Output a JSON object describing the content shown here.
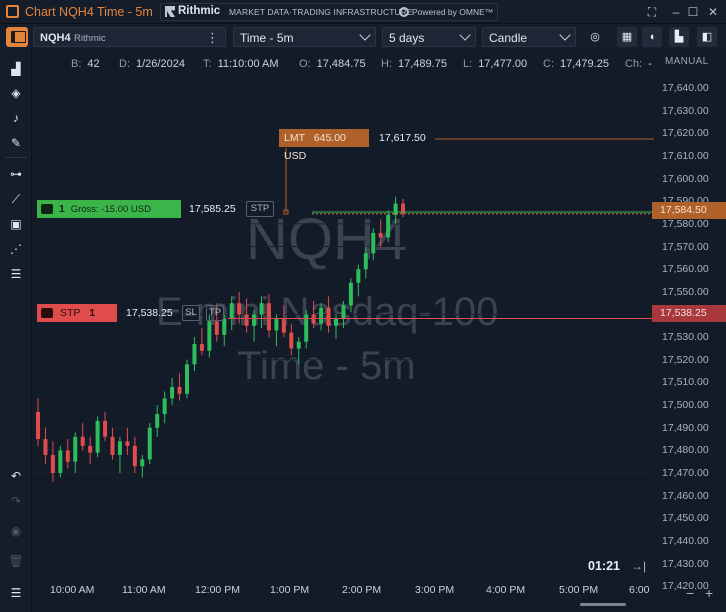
{
  "window": {
    "title": "Chart NQH4 Time - 5m"
  },
  "branding": {
    "rithmic": "Rithmic",
    "infra": "MARKET DATA·TRADING INFRASTRUCTURE",
    "omne": "Powered by OMNE™"
  },
  "toolbar": {
    "symbol": "NQH4",
    "symbol_sub": "Rithmic",
    "timeframe": "Time - 5m",
    "range": "5 days",
    "style": "Candle"
  },
  "bar_info": [
    {
      "k": "B:",
      "v": "42"
    },
    {
      "k": "D:",
      "v": "1/26/2024"
    },
    {
      "k": "T:",
      "v": "11:10:00 AM"
    },
    {
      "k": "O:",
      "v": "17,484.75"
    },
    {
      "k": "H:",
      "v": "17,489.75"
    },
    {
      "k": "L:",
      "v": "17,477.00"
    },
    {
      "k": "C:",
      "v": "17,479.25"
    },
    {
      "k": "Ch:",
      "v": "-"
    }
  ],
  "scale_mode": "MANUAL",
  "watermark": {
    "symbol": "NQH4",
    "name": "E-mini Nasdaq-100",
    "interval": "Time - 5m"
  },
  "orders": {
    "position": {
      "qty": "1",
      "gross": "Gross: -15.00 USD",
      "price": "17,585.25",
      "tag": "STP"
    },
    "limit": {
      "label": "LMT",
      "amount": "645.00 USD",
      "price": "17,617.50"
    },
    "stop": {
      "label": "STP",
      "qty": "1",
      "price": "17,538.25",
      "sl": "SL",
      "tp": "TP"
    }
  },
  "price_flags": {
    "last": "17,584.50",
    "stop": "17,538.25"
  },
  "price_axis": [
    "17,640.00",
    "17,630.00",
    "17,620.00",
    "17,610.00",
    "17,600.00",
    "17,590.00",
    "17,580.00",
    "17,570.00",
    "17,560.00",
    "17,550.00",
    "17,540.00",
    "17,530.00",
    "17,520.00",
    "17,510.00",
    "17,500.00",
    "17,490.00",
    "17,480.00",
    "17,470.00",
    "17,460.00",
    "17,450.00",
    "17,440.00",
    "17,430.00",
    "17,420.00"
  ],
  "time_axis": [
    "10:00 AM",
    "11:00 AM",
    "12:00 PM",
    "1:00 PM",
    "2:00 PM",
    "3:00 PM",
    "4:00 PM",
    "5:00 PM",
    "6:00"
  ],
  "timer": "01:21",
  "colors": {
    "up": "#2ebd5c",
    "down": "#e04c4c",
    "accent": "#e2843c",
    "position": "#3bb54a",
    "stop": "#e04c4c"
  },
  "candles": [
    [
      17497,
      17503,
      17482,
      17485
    ],
    [
      17485,
      17490,
      17474,
      17478
    ],
    [
      17478,
      17484,
      17466,
      17470
    ],
    [
      17470,
      17482,
      17468,
      17480
    ],
    [
      17480,
      17485,
      17472,
      17475
    ],
    [
      17475,
      17488,
      17470,
      17486
    ],
    [
      17486,
      17492,
      17480,
      17482
    ],
    [
      17482,
      17486,
      17474,
      17479
    ],
    [
      17479,
      17495,
      17477,
      17493
    ],
    [
      17493,
      17497,
      17484,
      17486
    ],
    [
      17486,
      17490,
      17476,
      17478
    ],
    [
      17478,
      17486,
      17470,
      17484
    ],
    [
      17484,
      17490,
      17478,
      17482
    ],
    [
      17482,
      17486,
      17470,
      17473
    ],
    [
      17473,
      17478,
      17468,
      17476
    ],
    [
      17476,
      17492,
      17474,
      17490
    ],
    [
      17490,
      17500,
      17486,
      17496
    ],
    [
      17496,
      17506,
      17492,
      17503
    ],
    [
      17503,
      17512,
      17500,
      17508
    ],
    [
      17508,
      17514,
      17502,
      17505
    ],
    [
      17505,
      17520,
      17503,
      17518
    ],
    [
      17518,
      17530,
      17515,
      17527
    ],
    [
      17527,
      17534,
      17522,
      17524
    ],
    [
      17524,
      17540,
      17521,
      17537
    ],
    [
      17537,
      17545,
      17528,
      17531
    ],
    [
      17531,
      17540,
      17526,
      17538
    ],
    [
      17538,
      17548,
      17533,
      17545
    ],
    [
      17545,
      17550,
      17536,
      17540
    ],
    [
      17540,
      17547,
      17532,
      17535
    ],
    [
      17535,
      17542,
      17528,
      17540
    ],
    [
      17540,
      17548,
      17534,
      17545
    ],
    [
      17545,
      17549,
      17530,
      17533
    ],
    [
      17533,
      17540,
      17526,
      17538
    ],
    [
      17538,
      17544,
      17530,
      17532
    ],
    [
      17532,
      17536,
      17522,
      17525
    ],
    [
      17525,
      17530,
      17518,
      17528
    ],
    [
      17528,
      17542,
      17525,
      17540
    ],
    [
      17540,
      17546,
      17534,
      17536
    ],
    [
      17536,
      17545,
      17533,
      17543
    ],
    [
      17543,
      17548,
      17532,
      17535
    ],
    [
      17535,
      17540,
      17529,
      17538
    ],
    [
      17538,
      17546,
      17534,
      17544
    ],
    [
      17544,
      17556,
      17541,
      17554
    ],
    [
      17554,
      17562,
      17548,
      17560
    ],
    [
      17560,
      17570,
      17556,
      17567
    ],
    [
      17567,
      17578,
      17564,
      17576
    ],
    [
      17576,
      17582,
      17570,
      17574
    ],
    [
      17574,
      17586,
      17572,
      17584
    ],
    [
      17584,
      17592,
      17580,
      17589
    ],
    [
      17589,
      17591,
      17583,
      17584.5
    ]
  ]
}
